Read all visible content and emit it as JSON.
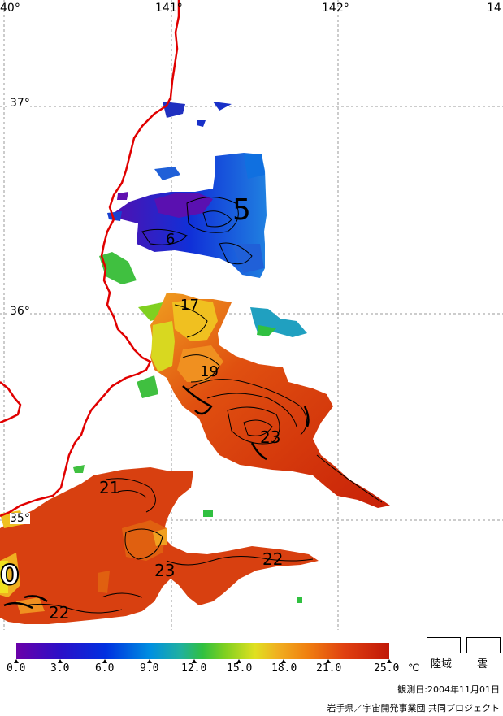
{
  "map": {
    "longitudes": [
      "40°",
      "141°",
      "142°",
      "14"
    ],
    "latitudes": [
      "37°",
      "36°",
      "35°"
    ],
    "contour_labels": [
      "5",
      "6",
      "17",
      "19",
      "23",
      "21",
      "23",
      "22",
      "22"
    ],
    "edge_label": "0",
    "colors": {
      "coastline": "#e00000",
      "grid": "#9a9a9a",
      "cold": "#2030d0",
      "warm": "#d84010",
      "hot": "#c82008"
    }
  },
  "colorbar": {
    "ticks": [
      "0.0",
      "3.0",
      "6.0",
      "9.0",
      "12.0",
      "15.0",
      "18.0",
      "21.0",
      "25.0"
    ],
    "unit": "℃"
  },
  "legend": {
    "land": "陸域",
    "cloud": "雲"
  },
  "footer": {
    "date": "観測日:2004年11月01日",
    "credit": "岩手県／宇宙開発事業団 共同プロジェクト"
  }
}
